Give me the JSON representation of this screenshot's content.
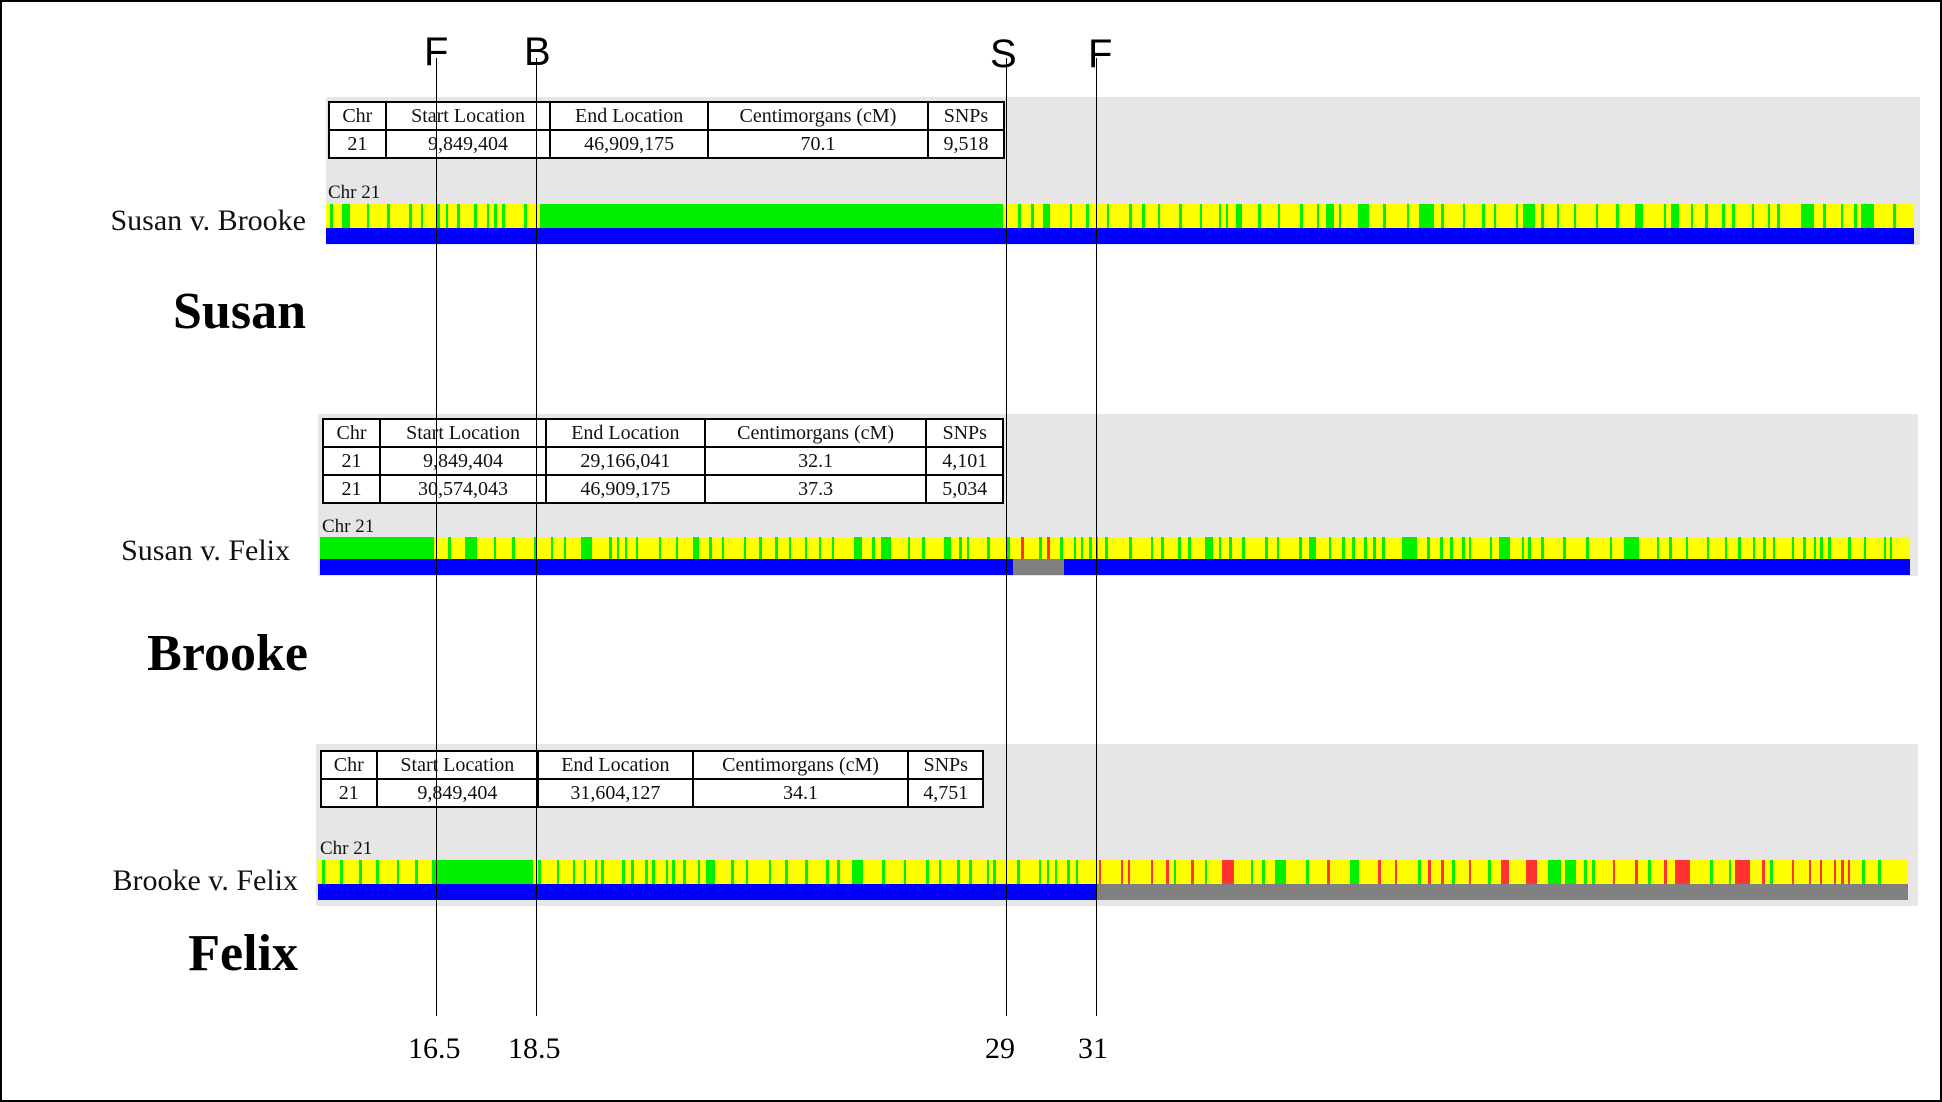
{
  "comparisons": [
    {
      "label": "Susan v. Brooke",
      "person": "Susan",
      "chr_label": "Chr 21",
      "headers": [
        "Chr",
        "Start Location",
        "End Location",
        "Centimorgans (cM)",
        "SNPs"
      ],
      "rows": [
        [
          "21",
          "9,849,404",
          "46,909,175",
          "70.1",
          "9,518"
        ]
      ],
      "match_blocks": [
        [
          0.0,
          0.0
        ],
        [
          0.135,
          0.425
        ]
      ],
      "gray_blocks": [
        [
          0.0,
          0.0
        ]
      ]
    },
    {
      "label": "Susan v. Felix",
      "person": "Brooke",
      "chr_label": "Chr 21",
      "headers": [
        "Chr",
        "Start Location",
        "End Location",
        "Centimorgans (cM)",
        "SNPs"
      ],
      "rows": [
        [
          "21",
          "9,849,404",
          "29,166,041",
          "32.1",
          "4,101"
        ],
        [
          "21",
          "30,574,043",
          "46,909,175",
          "37.3",
          "5,034"
        ]
      ],
      "match_blocks": [
        [
          0.0,
          0.072
        ]
      ],
      "gray_blocks": [
        [
          0.436,
          0.468
        ]
      ]
    },
    {
      "label": "Brooke v. Felix",
      "person": "Felix",
      "chr_label": "Chr 21",
      "headers": [
        "Chr",
        "Start Location",
        "End Location",
        "Centimorgans (cM)",
        "SNPs"
      ],
      "rows": [
        [
          "21",
          "9,849,404",
          "31,604,127",
          "34.1",
          "4,751"
        ]
      ],
      "match_blocks": [
        [
          0.072,
          0.135
        ]
      ],
      "gray_blocks": [
        [
          0.489,
          1.0
        ]
      ]
    }
  ],
  "markers": [
    {
      "letter": "F",
      "position": "16.5"
    },
    {
      "letter": "B",
      "position": "18.5"
    },
    {
      "letter": "S",
      "position": "29"
    },
    {
      "letter": "F",
      "position": "31"
    }
  ],
  "colors": {
    "panel": "#e6e6e6",
    "match": "#00ee00",
    "het": "#ffff00",
    "opposite": "#ff3333",
    "baseline": "#0000ff",
    "no_match": "#808080"
  }
}
